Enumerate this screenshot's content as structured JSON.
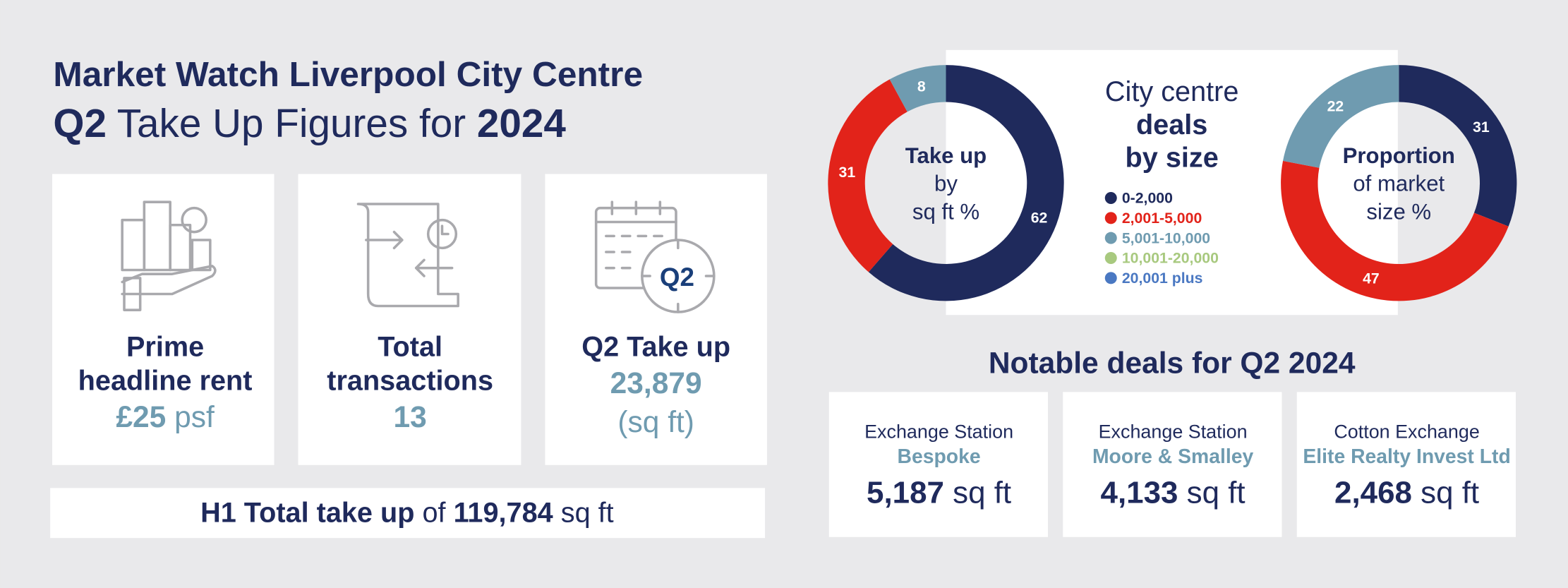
{
  "header": {
    "title": "Market Watch Liverpool City Centre",
    "subtitle": [
      "Q2",
      " Take Up Figures for ",
      "2024"
    ]
  },
  "cards": [
    {
      "label": [
        "Prime",
        "headline rent"
      ],
      "value": "£25",
      "unit": " psf"
    },
    {
      "label": [
        "Total",
        "transactions"
      ],
      "value": "13"
    },
    {
      "label": [
        "Q2 Take up"
      ],
      "value": "23,879",
      "unit": "(sq ft)",
      "icon_text": "Q2"
    }
  ],
  "h1_total": [
    "H1 Total take up",
    " of ",
    "119,784",
    " sq ft"
  ],
  "legend": {
    "title": [
      "City centre",
      "deals",
      "by size"
    ],
    "items": [
      {
        "label": "0-2,000",
        "color": "#1f2a5c"
      },
      {
        "label": "2,001-5,000",
        "color": "#e2231a"
      },
      {
        "label": "5,001-10,000",
        "color": "#6f9bb0"
      },
      {
        "label": "10,001-20,000",
        "color": "#a8c97f"
      },
      {
        "label": "20,001 plus",
        "color": "#4a78c2"
      }
    ]
  },
  "chart_data": [
    {
      "type": "donut",
      "center_text": [
        "Take up",
        "by",
        "sq ft %"
      ],
      "values": [
        62,
        31,
        8
      ],
      "colors": [
        "#1f2a5c",
        "#e2231a",
        "#6f9bb0"
      ]
    },
    {
      "type": "donut",
      "center_text": [
        "Proportion",
        "of market",
        "size %"
      ],
      "values": [
        31,
        47,
        22
      ],
      "colors": [
        "#1f2a5c",
        "#e2231a",
        "#6f9bb0"
      ]
    }
  ],
  "deals": {
    "title": "Notable deals for Q2 2024",
    "items": [
      {
        "location": "Exchange Station",
        "tenant": "Bespoke",
        "size": "5,187",
        "unit": " sq ft"
      },
      {
        "location": "Exchange Station",
        "tenant": "Moore & Smalley",
        "size": "4,133",
        "unit": " sq ft"
      },
      {
        "location": "Cotton Exchange",
        "tenant": "Elite Realty Invest Ltd",
        "size": "2,468",
        "unit": " sq ft"
      }
    ]
  }
}
